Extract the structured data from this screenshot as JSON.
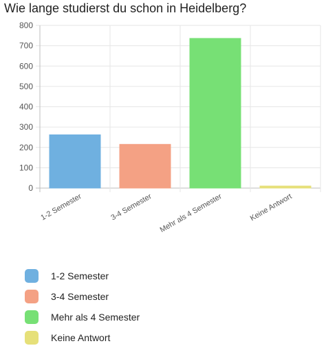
{
  "chart_data": {
    "type": "bar",
    "title": "Wie lange studierst du schon in Heidelberg?",
    "categories": [
      "1-2 Semester",
      "3-4 Semester",
      "Mehr als 4 Semester",
      "Keine Antwort"
    ],
    "values": [
      262,
      215,
      736,
      10
    ],
    "colors": [
      "#6fb0e0",
      "#f4a184",
      "#77e075",
      "#e6e079"
    ],
    "ylim": [
      0,
      800
    ],
    "yticks": [
      0,
      100,
      200,
      300,
      400,
      500,
      600,
      700,
      800
    ],
    "grid": true,
    "legend_position": "bottom-left"
  },
  "legend": {
    "items": [
      {
        "label": "1-2 Semester",
        "color": "#6fb0e0"
      },
      {
        "label": "3-4 Semester",
        "color": "#f4a184"
      },
      {
        "label": "Mehr als 4 Semester",
        "color": "#77e075"
      },
      {
        "label": "Keine Antwort",
        "color": "#e6e079"
      }
    ]
  }
}
